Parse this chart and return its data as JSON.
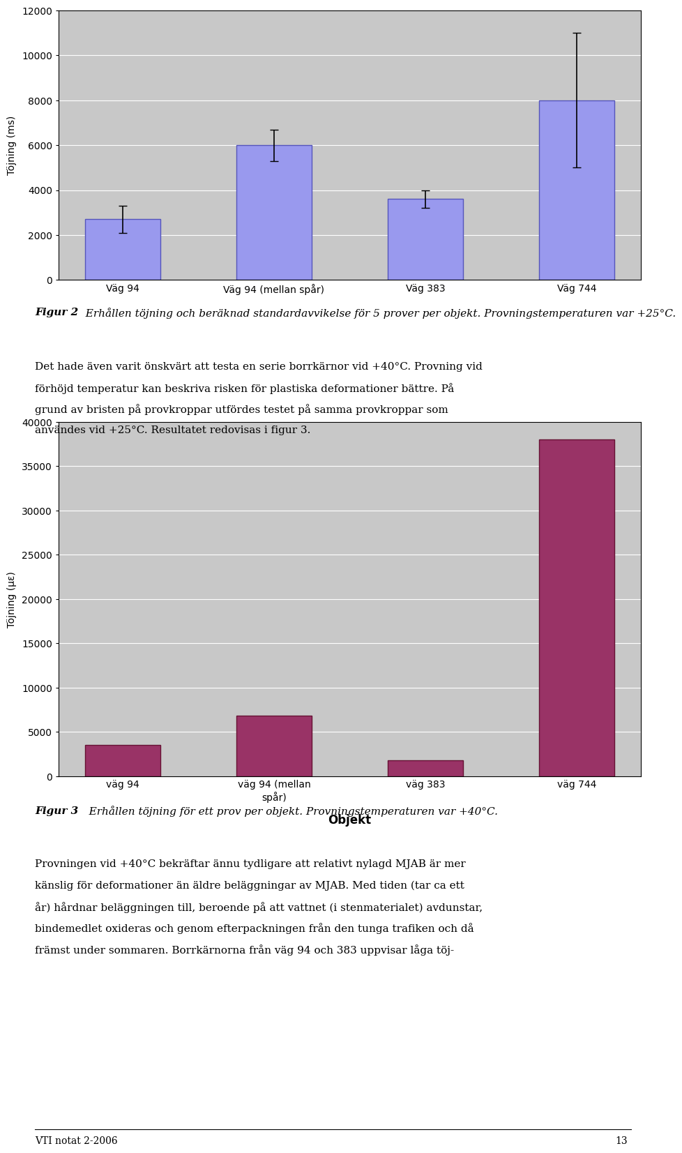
{
  "chart1": {
    "categories": [
      "Väg 94",
      "Väg 94 (mellan spår)",
      "Väg 383",
      "Väg 744"
    ],
    "values": [
      2700,
      6000,
      3600,
      8000
    ],
    "errors": [
      600,
      700,
      400,
      3000
    ],
    "bar_color": "#9999ee",
    "bar_edge_color": "#5555bb",
    "ylabel": "Töjning (ms)",
    "ylim": [
      0,
      12000
    ],
    "yticks": [
      0,
      2000,
      4000,
      6000,
      8000,
      10000,
      12000
    ],
    "bg_color": "#c8c8c8"
  },
  "fig2_caption_bold": "Figur 2",
  "fig2_caption_rest": "  Erhållen töjning och beräknad standardavvikelse för 5 prover per objekt. Provningstemperaturen var +25°C.",
  "text_block_lines": [
    "Det hade även varit önskvärt att testa en serie borrkärnor vid +40°C. Provning vid",
    "förhöjd temperatur kan beskriva risken för plastiska deformationer bättre. På",
    "grund av bristen på provkroppar utfördes testet på samma provkroppar som",
    "användes vid +25°C. Resultatet redovisas i figur 3."
  ],
  "chart2": {
    "categories": [
      "väg 94",
      "väg 94 (mellan\nspår)",
      "väg 383",
      "väg 744"
    ],
    "values": [
      3500,
      6800,
      1800,
      38000
    ],
    "bar_color": "#993366",
    "bar_edge_color": "#661133",
    "ylabel": "Töjning (με)",
    "xlabel": "Objekt",
    "ylim": [
      0,
      40000
    ],
    "yticks": [
      0,
      5000,
      10000,
      15000,
      20000,
      25000,
      30000,
      35000,
      40000
    ],
    "bg_color": "#c8c8c8"
  },
  "fig3_caption_bold": "Figur 3",
  "fig3_caption_rest": "   Erhållen töjning för ett prov per objekt. Provningstemperaturen var +40°C.",
  "footer_text_lines": [
    "Provningen vid +40°C bekräftar ännu tydligare att relativt nylagd MJAB är mer",
    "känslig för deformationer än äldre beläggningar av MJAB. Med tiden (tar ca ett",
    "år) hårdnar beläggningen till, beroende på att vattnet (i stenmaterialet) avdunstar,",
    "bindemedlet oxideras och genom efterpackningen från den tunga trafiken och då",
    "främst under sommaren. Borrkärnorna från väg 94 och 383 uppvisar låga töj-"
  ],
  "page_footer": "VTI notat 2-2006",
  "page_number": "13",
  "body_font_size": 11,
  "caption_font_size": 11,
  "axis_font_size": 10
}
